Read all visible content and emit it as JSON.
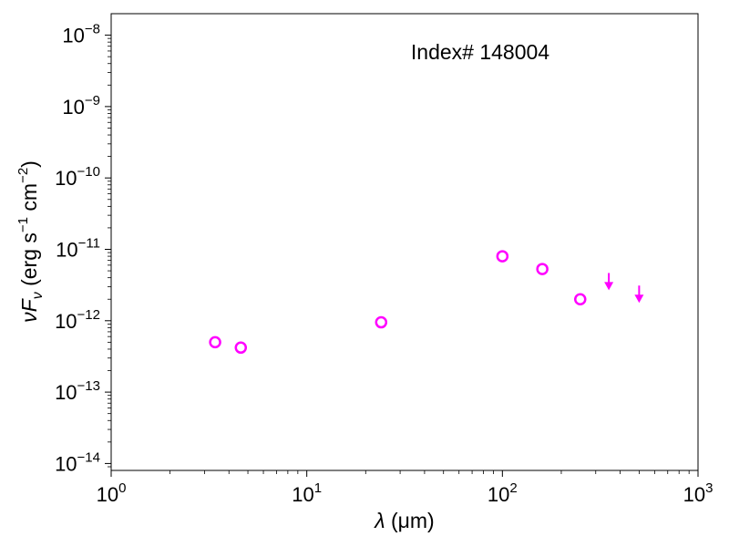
{
  "chart_data": {
    "type": "scatter",
    "title": "",
    "annotation": "Index# 148004",
    "xlabel": {
      "symbol": "λ",
      "unit": "(μm)"
    },
    "ylabel": {
      "main": "νF",
      "sub": "ν",
      "unit_prefix": "(erg s",
      "exp1": "−1",
      "unit_mid": " cm",
      "exp2": "−2",
      "unit_suffix": ")"
    },
    "xscale": "log",
    "yscale": "log",
    "xlim": [
      1,
      1000
    ],
    "ylim": [
      8e-15,
      2e-08
    ],
    "x_ticks": [
      {
        "value": 1,
        "base": "10",
        "exp": "0"
      },
      {
        "value": 10,
        "base": "10",
        "exp": "1"
      },
      {
        "value": 100,
        "base": "10",
        "exp": "2"
      },
      {
        "value": 1000,
        "base": "10",
        "exp": "3"
      }
    ],
    "y_ticks": [
      {
        "value": 1e-14,
        "base": "10",
        "exp": "−14"
      },
      {
        "value": 1e-13,
        "base": "10",
        "exp": "−13"
      },
      {
        "value": 1e-12,
        "base": "10",
        "exp": "−12"
      },
      {
        "value": 1e-11,
        "base": "10",
        "exp": "−11"
      },
      {
        "value": 1e-10,
        "base": "10",
        "exp": "−10"
      },
      {
        "value": 1e-09,
        "base": "10",
        "exp": "−9"
      },
      {
        "value": 1e-08,
        "base": "10",
        "exp": "−8"
      }
    ],
    "grid": false,
    "marker_color": "#ff00ff",
    "points": [
      {
        "x": 3.4,
        "y": 5e-13
      },
      {
        "x": 4.6,
        "y": 4.2e-13
      },
      {
        "x": 24,
        "y": 9.5e-13
      },
      {
        "x": 100,
        "y": 8e-12
      },
      {
        "x": 160,
        "y": 5.3e-12
      },
      {
        "x": 250,
        "y": 2e-12
      }
    ],
    "upper_limits": [
      {
        "x": 350,
        "y": 3e-12
      },
      {
        "x": 500,
        "y": 2e-12
      }
    ]
  }
}
